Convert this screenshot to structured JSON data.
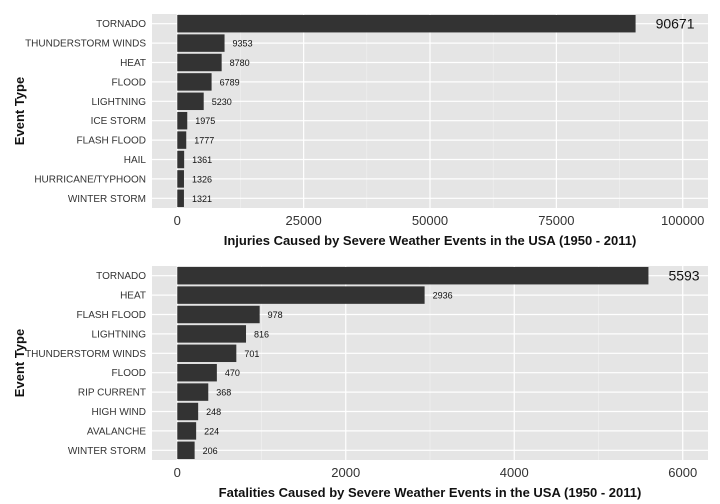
{
  "chart_data": [
    {
      "type": "bar",
      "orientation": "horizontal",
      "categories": [
        "TORNADO",
        "THUNDERSTORM WINDS",
        "HEAT",
        "FLOOD",
        "LIGHTNING",
        "ICE STORM",
        "FLASH FLOOD",
        "HAIL",
        "HURRICANE/TYPHOON",
        "WINTER STORM"
      ],
      "values": [
        90671,
        9353,
        8780,
        6789,
        5230,
        1975,
        1777,
        1361,
        1326,
        1321
      ],
      "value_labels": [
        "90671",
        "9353",
        "8780",
        "6789",
        "5230",
        "1975",
        "1777",
        "1361",
        "1326",
        "1321"
      ],
      "xlabel": "Injuries Caused by Severe Weather Events in the USA (1950 - 2011)",
      "ylabel": "Event Type",
      "xlim": [
        -5000,
        105000
      ],
      "ticks": [
        0,
        25000,
        50000,
        75000,
        100000
      ],
      "tick_labels": [
        "0",
        "25000",
        "50000",
        "75000",
        "100000"
      ],
      "grid": true,
      "bar_color": "#333333",
      "panel_color": "#e5e5e5"
    },
    {
      "type": "bar",
      "orientation": "horizontal",
      "categories": [
        "TORNADO",
        "HEAT",
        "FLASH FLOOD",
        "LIGHTNING",
        "THUNDERSTORM WINDS",
        "FLOOD",
        "RIP CURRENT",
        "HIGH WIND",
        "AVALANCHE",
        "WINTER STORM"
      ],
      "values": [
        5593,
        2936,
        978,
        816,
        701,
        470,
        368,
        248,
        224,
        206
      ],
      "value_labels": [
        "5593",
        "2936",
        "978",
        "816",
        "701",
        "470",
        "368",
        "248",
        "224",
        "206"
      ],
      "xlabel": "Fatalities Caused by Severe Weather Events in the USA (1950 - 2011)",
      "ylabel": "Event Type",
      "xlim": [
        -300,
        6300
      ],
      "ticks": [
        0,
        2000,
        4000,
        6000
      ],
      "tick_labels": [
        "0",
        "2000",
        "4000",
        "6000"
      ],
      "grid": true,
      "bar_color": "#333333",
      "panel_color": "#e5e5e5"
    }
  ]
}
